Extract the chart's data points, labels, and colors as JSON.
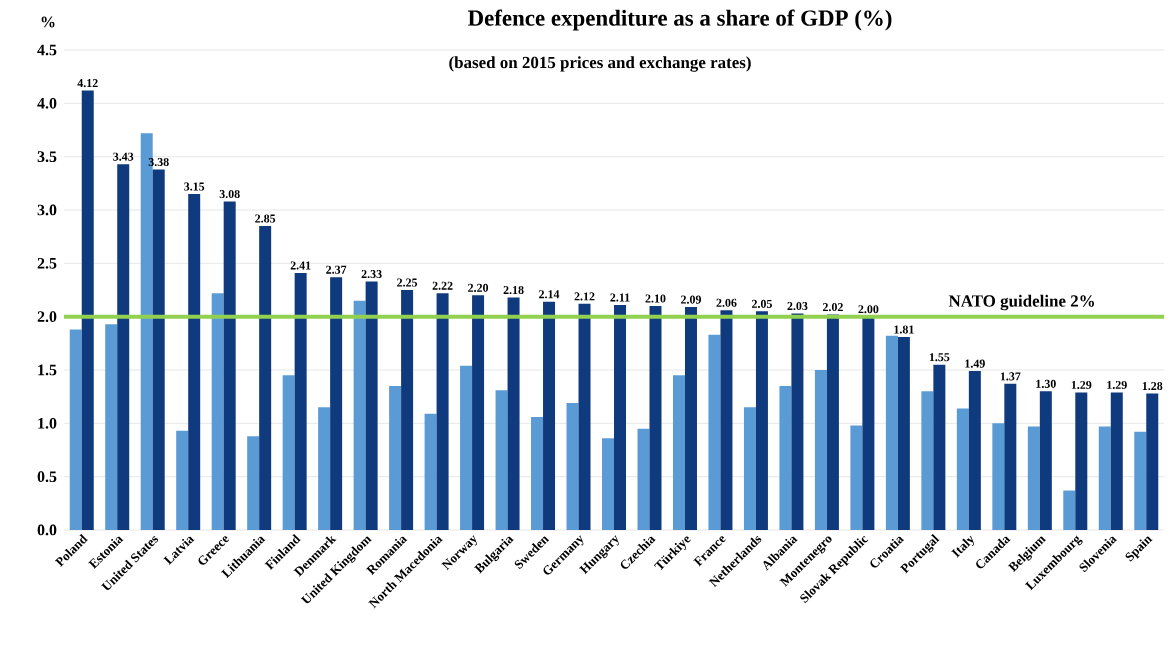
{
  "chart_data": {
    "type": "bar",
    "title": "Defence expenditure as a share of GDP (%)",
    "subtitle": "(based on 2015 prices and exchange rates)",
    "ylabel": "%",
    "categories": [
      "Poland",
      "Estonia",
      "United States",
      "Latvia",
      "Greece",
      "Lithuania",
      "Finland",
      "Denmark",
      "United Kingdom",
      "Romania",
      "North Macedonia",
      "Norway",
      "Bulgaria",
      "Sweden",
      "Germany",
      "Hungary",
      "Czechia",
      "Türkiye",
      "France",
      "Netherlands",
      "Albania",
      "Montenegro",
      "Slovak Republic",
      "Croatia",
      "Portugal",
      "Italy",
      "Canada",
      "Belgium",
      "Luxembourg",
      "Slovenia",
      "Spain"
    ],
    "series": [
      {
        "color": "#5b9bd5",
        "values": [
          1.88,
          1.93,
          3.72,
          0.93,
          2.22,
          0.88,
          1.45,
          1.15,
          2.15,
          1.35,
          1.09,
          1.54,
          1.31,
          1.06,
          1.19,
          0.86,
          0.95,
          1.45,
          1.83,
          1.15,
          1.35,
          1.5,
          0.98,
          1.82,
          1.3,
          1.14,
          1.0,
          0.97,
          0.37,
          0.97,
          0.92
        ]
      },
      {
        "color": "#0f3a7d",
        "values": [
          4.12,
          3.43,
          3.38,
          3.15,
          3.08,
          2.85,
          2.41,
          2.37,
          2.33,
          2.25,
          2.22,
          2.2,
          2.18,
          2.14,
          2.12,
          2.11,
          2.1,
          2.09,
          2.06,
          2.05,
          2.03,
          2.02,
          2.0,
          1.81,
          1.55,
          1.49,
          1.37,
          1.3,
          1.29,
          1.29,
          1.28
        ],
        "value_labels": [
          "4.12",
          "3.43",
          "3.38",
          "3.15",
          "3.08",
          "2.85",
          "2.41",
          "2.37",
          "2.33",
          "2.25",
          "2.22",
          "2.20",
          "2.18",
          "2.14",
          "2.12",
          "2.11",
          "2.10",
          "2.09",
          "2.06",
          "2.05",
          "2.03",
          "2.02",
          "2.00",
          "1.81",
          "1.55",
          "1.49",
          "1.37",
          "1.30",
          "1.29",
          "1.29",
          "1.28"
        ]
      }
    ],
    "ylim": [
      0,
      4.5
    ],
    "yticks": [
      {
        "value": 0,
        "label": "0.0"
      },
      {
        "value": 0.5,
        "label": "0.5"
      },
      {
        "value": 1,
        "label": "1.0"
      },
      {
        "value": 1.5,
        "label": "1.5"
      },
      {
        "value": 2,
        "label": "2.0"
      },
      {
        "value": 2.5,
        "label": "2.5"
      },
      {
        "value": 3,
        "label": "3.0"
      },
      {
        "value": 3.5,
        "label": "3.5"
      },
      {
        "value": 4,
        "label": "4.0"
      },
      {
        "value": 4.5,
        "label": "4.5"
      }
    ],
    "grid": "y",
    "ref_lines": [
      {
        "axis": "y",
        "value": 2,
        "label": "NATO guideline 2%",
        "color": "#92d050"
      }
    ]
  }
}
